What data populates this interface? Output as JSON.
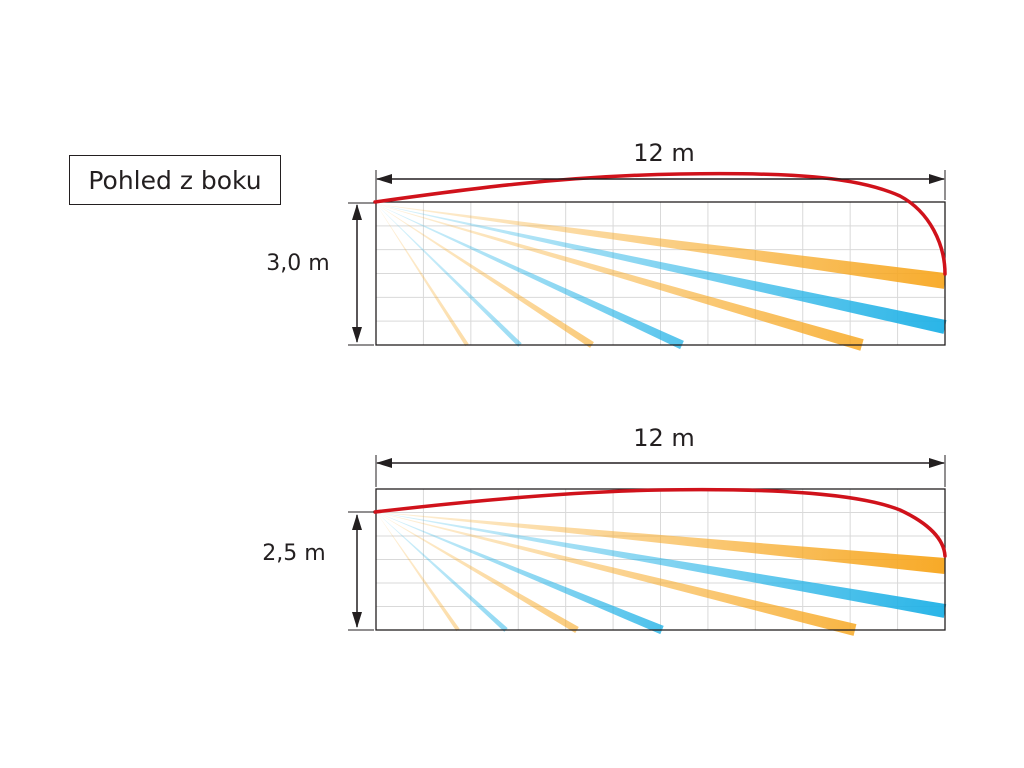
{
  "title": "Pohled z boku",
  "panels": [
    {
      "width_label": "12 m",
      "height_label": "3,0 m"
    },
    {
      "width_label": "12 m",
      "height_label": "2,5 m"
    }
  ],
  "colors": {
    "coverage_outline": "#d0121b",
    "beam_orange": "#f7a823",
    "beam_blue": "#1fb1e6",
    "grid": "#d9d9d9",
    "frame": "#231f20"
  }
}
